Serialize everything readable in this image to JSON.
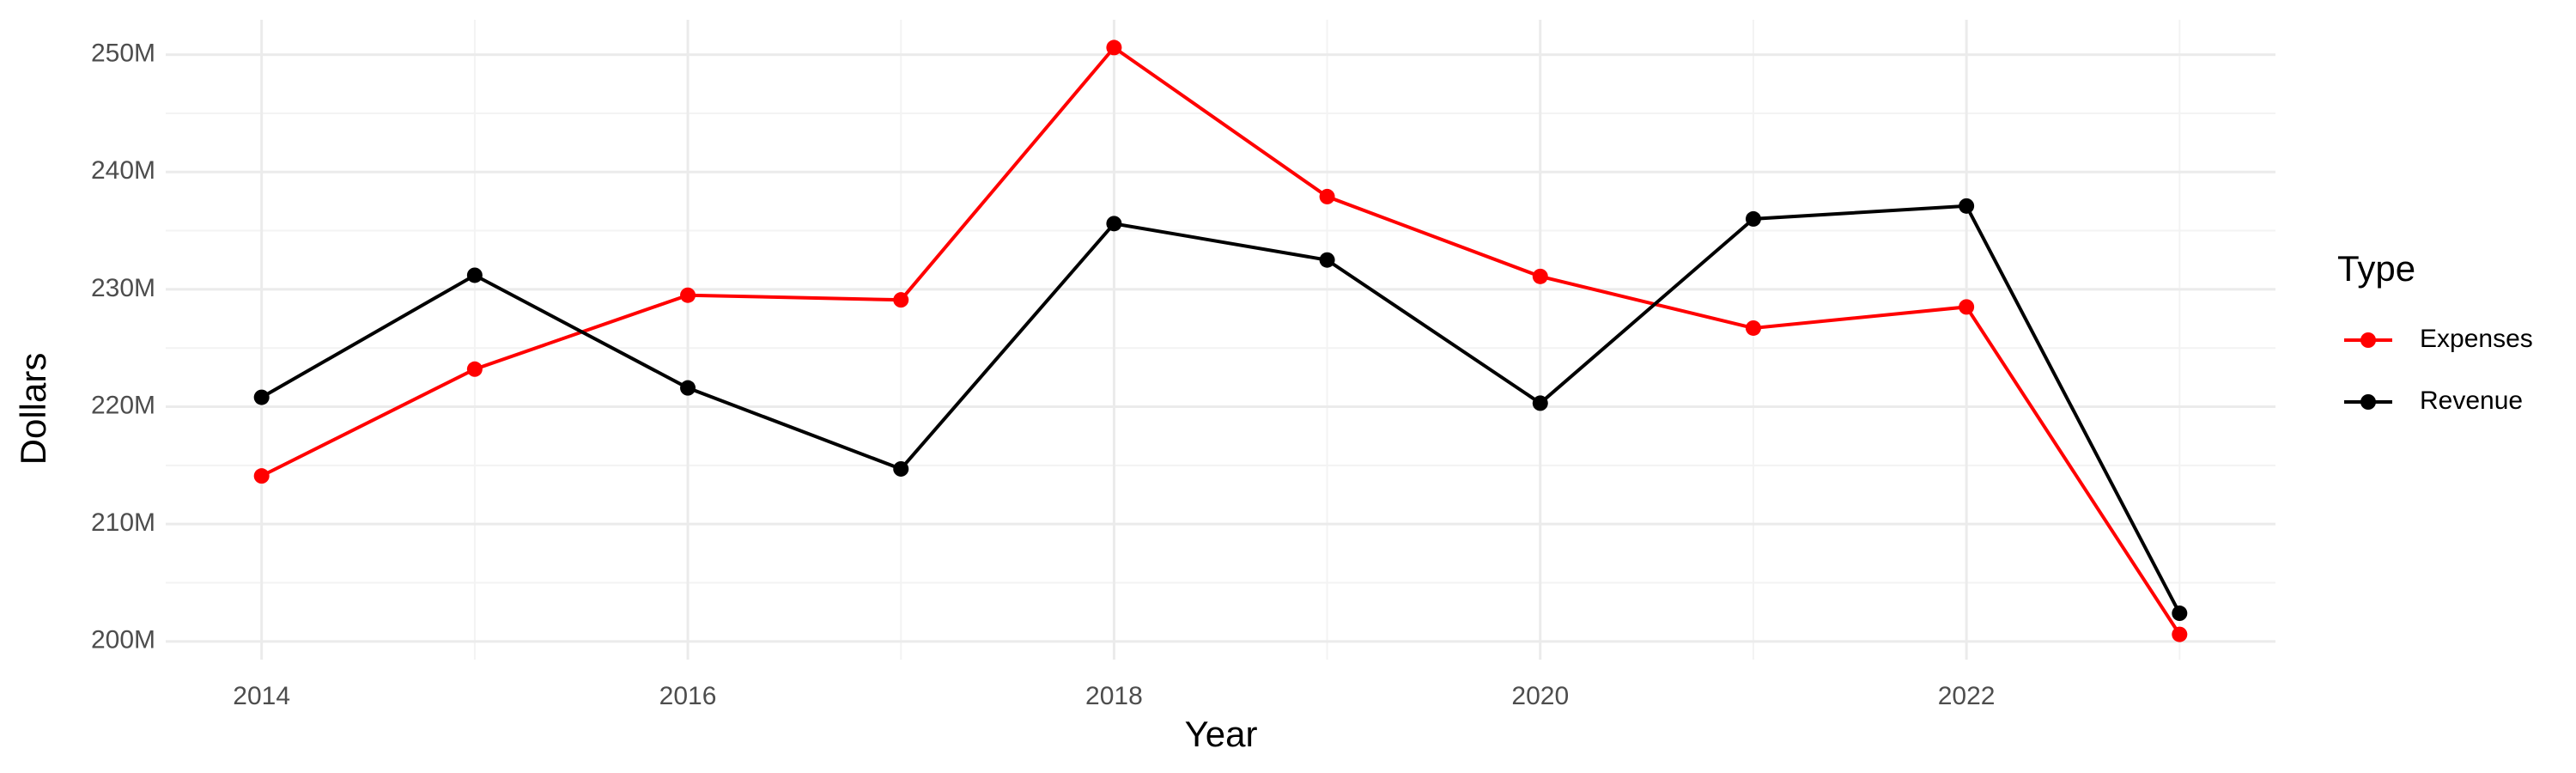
{
  "chart_data": {
    "type": "line",
    "x_label": "Year",
    "y_label": "Dollars",
    "legend_title": "Type",
    "x": [
      2014,
      2015,
      2016,
      2017,
      2018,
      2019,
      2020,
      2021,
      2022,
      2023
    ],
    "series": [
      {
        "name": "Expenses",
        "color": "#ff0000",
        "values": [
          214100000,
          223200000,
          229500000,
          229100000,
          250600000,
          237900000,
          231100000,
          226700000,
          228500000,
          200600000
        ]
      },
      {
        "name": "Revenue",
        "color": "#000000",
        "values": [
          220800000,
          231200000,
          221600000,
          214700000,
          235600000,
          232500000,
          220300000,
          236000000,
          237100000,
          202400000
        ]
      }
    ],
    "xlim": [
      2013.55,
      2023.45
    ],
    "xticks": [
      2014,
      2016,
      2018,
      2020,
      2022
    ],
    "ylim": [
      198450000,
      252970000
    ],
    "yticks": [
      {
        "value": 200000000,
        "label": "200M"
      },
      {
        "value": 210000000,
        "label": "210M"
      },
      {
        "value": 220000000,
        "label": "220M"
      },
      {
        "value": 230000000,
        "label": "230M"
      },
      {
        "value": 240000000,
        "label": "240M"
      },
      {
        "value": 250000000,
        "label": "250M"
      }
    ],
    "grid": true
  }
}
